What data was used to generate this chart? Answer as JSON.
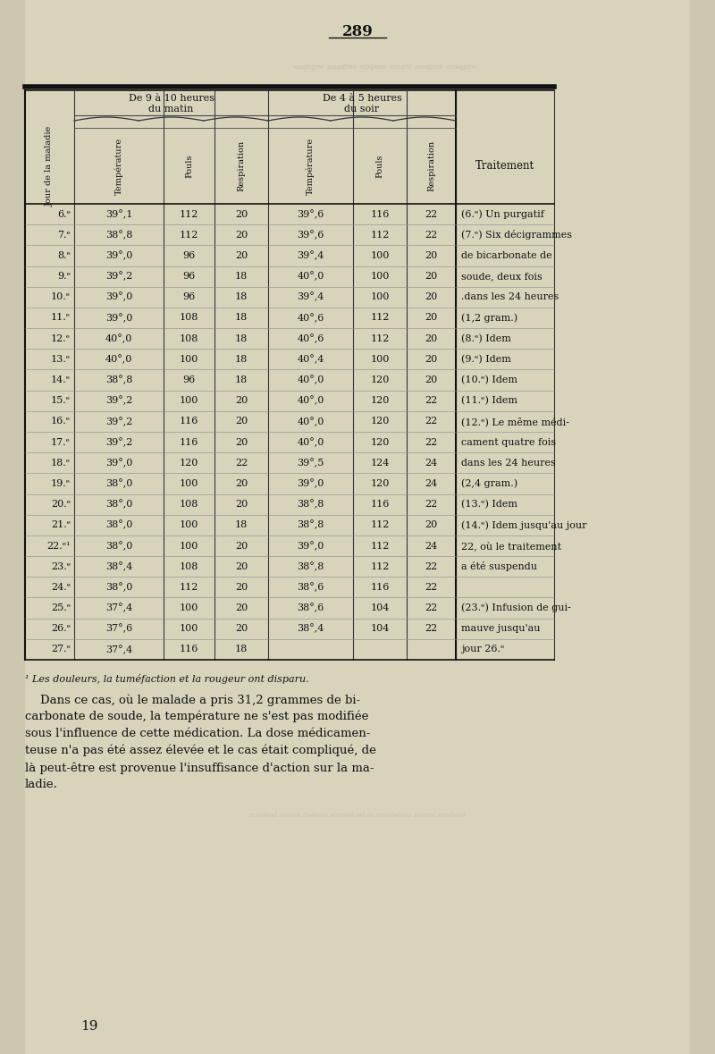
{
  "page_number": "289",
  "page_number_bottom": "19",
  "background_color": "#ccc8b0",
  "paper_color": "#d8d4bc",
  "title_morning": "De 9 à 10 heures\ndu matin",
  "title_evening": "De 4 à 5 heures\ndu soir",
  "col_headers": [
    "Jour de la maladie",
    "Température",
    "Pouls",
    "Respiration",
    "Température",
    "Pouls",
    "Respiration",
    "Traitement"
  ],
  "rows": [
    [
      "6.ᵉ",
      "39°,1",
      "112",
      "20",
      "39°,6",
      "116",
      "22",
      "(6.ᵉ) Un purgatif"
    ],
    [
      "7.ᵉ",
      "38°,8",
      "112",
      "20",
      "39°,6",
      "112",
      "22",
      "(7.ᵉ) Six décigrammes"
    ],
    [
      "8.ᵉ",
      "39°,0",
      "96",
      "20",
      "39°,4",
      "100",
      "20",
      "de bicarbonate de"
    ],
    [
      "9.ᵉ",
      "39°,2",
      "96",
      "18",
      "40°,0",
      "100",
      "20",
      "soude, deux fois"
    ],
    [
      "10.ᵉ",
      "39°,0",
      "96",
      "18",
      "39°,4",
      "100",
      "20",
      ".dans les 24 heures"
    ],
    [
      "11.ᵉ",
      "39°,0",
      "108",
      "18",
      "40°,6",
      "112",
      "20",
      "(1,2 gram.)"
    ],
    [
      "12.ᵉ",
      "40°,0",
      "108",
      "18",
      "40°,6",
      "112",
      "20",
      "(8.ᵉ) Idem"
    ],
    [
      "13.ᵉ",
      "40°,0",
      "100",
      "18",
      "40°,4",
      "100",
      "20",
      "(9.ᵉ) Idem"
    ],
    [
      "14.ᵉ",
      "38°,8",
      "96",
      "18",
      "40°,0",
      "120",
      "20",
      "(10.ᵉ) Idem"
    ],
    [
      "15.ᵉ",
      "39°,2",
      "100",
      "20",
      "40°,0",
      "120",
      "22",
      "(11.ᵉ) Idem"
    ],
    [
      "16.ᵉ",
      "39°,2",
      "116",
      "20",
      "40°,0",
      "120",
      "22",
      "(12.ᵉ) Le même médi-"
    ],
    [
      "17.ᵉ",
      "39°,2",
      "116",
      "20",
      "40°,0",
      "120",
      "22",
      "cament quatre fois"
    ],
    [
      "18.ᵉ",
      "39°,0",
      "120",
      "22",
      "39°,5",
      "124",
      "24",
      "dans les 24 heures"
    ],
    [
      "19.ᵉ",
      "38°,0",
      "100",
      "20",
      "39°,0",
      "120",
      "24",
      "(2,4 gram.)"
    ],
    [
      "20.ᵉ",
      "38°,0",
      "108",
      "20",
      "38°,8",
      "116",
      "22",
      "(13.ᵉ) Idem"
    ],
    [
      "21.ᵉ",
      "38°,0",
      "100",
      "18",
      "38°,8",
      "112",
      "20",
      "(14.ᵉ) Idem jusqu'au jour"
    ],
    [
      "22.ᵉ¹",
      "38°,0",
      "100",
      "20",
      "39°,0",
      "112",
      "24",
      "22, où le traitement"
    ],
    [
      "23.ᵉ",
      "38°,4",
      "108",
      "20",
      "38°,8",
      "112",
      "22",
      "a été suspendu"
    ],
    [
      "24.ᵉ",
      "38°,0",
      "112",
      "20",
      "38°,6",
      "116",
      "22",
      ""
    ],
    [
      "25.ᵉ",
      "37°,4",
      "100",
      "20",
      "38°,6",
      "104",
      "22",
      "(23.ᵉ) Infusion de gui-"
    ],
    [
      "26.ᵉ",
      "37°,6",
      "100",
      "20",
      "38°,4",
      "104",
      "22",
      "mauve jusqu'au"
    ],
    [
      "27.ᵉ",
      "37°,4",
      "116",
      "18",
      "",
      "",
      "",
      "jour 26.ᵉ"
    ]
  ],
  "footnote": "¹ Les douleurs, la tuméfaction et la rougeur ont disparu.",
  "paragraph": "Dans ce cas, où le malade a pris 31,2 grammes de bi-\ncarbonate de soude, la température ne s'est pas modifiée\nsous l'influence de cette médication. La dose médicamen-\nteuse n'a pas été assez élevée et le cas était compliqué, de\nlà peut-être est provenue l'insuffisance d'action sur la ma-\nladie."
}
